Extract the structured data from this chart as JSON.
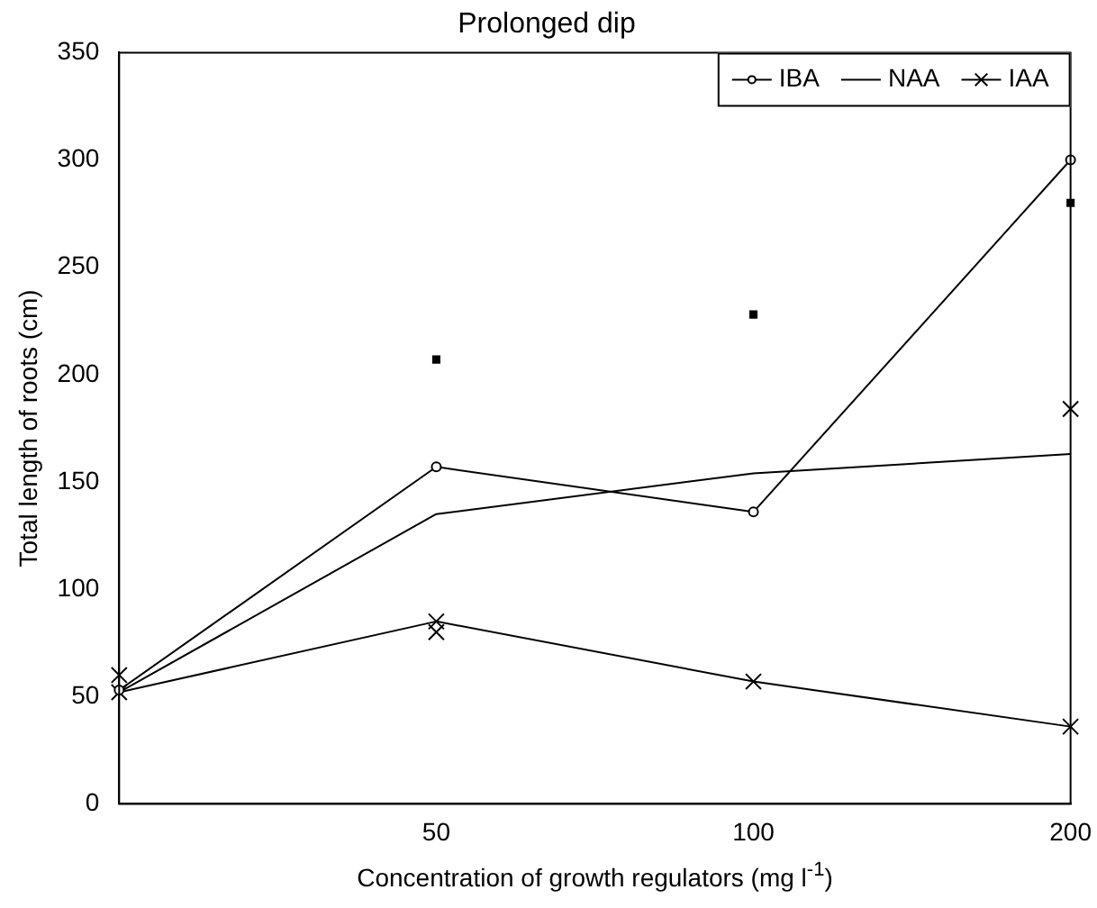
{
  "chart_data": {
    "type": "line",
    "title": "Prolonged dip",
    "xlabel": "Concentration of growth regulators (mg l$^{-1}$)",
    "ylabel": "Total length of roots (cm)",
    "categories": [
      null,
      "50",
      "100",
      "200"
    ],
    "ylim": [
      0,
      350
    ],
    "yticks": [
      0,
      50,
      100,
      150,
      200,
      250,
      300,
      350
    ],
    "grid": false,
    "legend": "top right",
    "line_style": "solid",
    "series": [
      {
        "name": "IBA",
        "color": "#000000",
        "marker": "circle",
        "values": [
          53,
          157,
          136,
          300
        ]
      },
      {
        "name": "NAA",
        "color": "#000000",
        "marker": "none",
        "values": [
          52,
          135,
          154,
          163
        ]
      },
      {
        "name": "IAA",
        "color": "#000000",
        "marker": "cross",
        "values": [
          52,
          85,
          57,
          36
        ]
      },
      {
        "type": "scatter",
        "color": "#000000",
        "marker": "square",
        "values": [
          null,
          207,
          228,
          280
        ]
      },
      {
        "type": "scatter",
        "color": "#000000",
        "marker": "cross",
        "values": [
          60,
          80,
          null,
          184
        ]
      }
    ]
  }
}
